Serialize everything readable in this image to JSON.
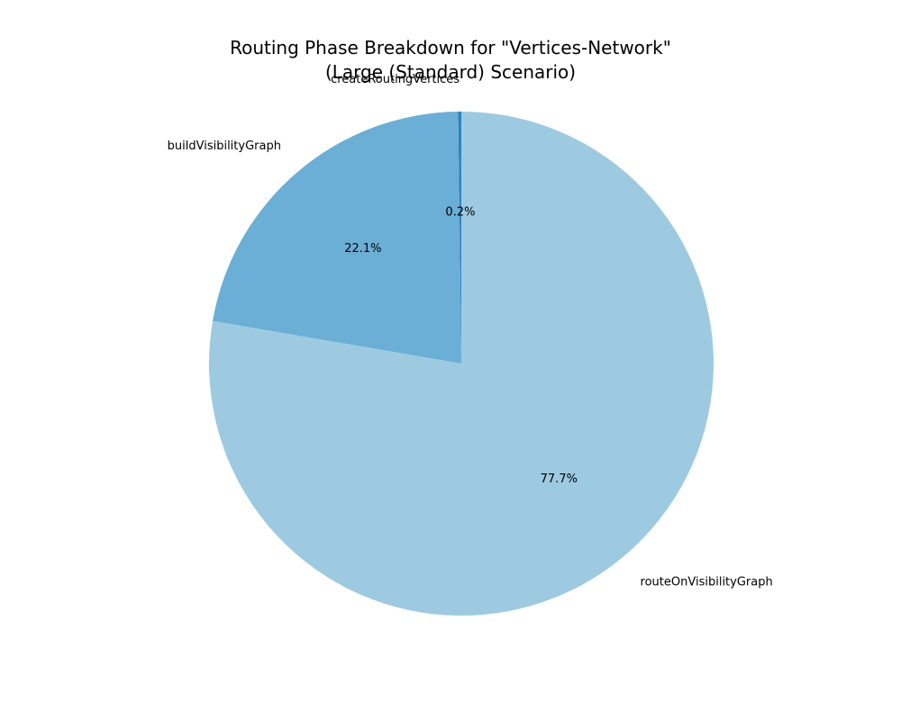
{
  "chart_data": {
    "type": "pie",
    "title_lines": [
      "Routing Phase Breakdown for \"Vertices-Network\"",
      "(Large (Standard) Scenario)"
    ],
    "slices": [
      {
        "label": "createRoutingVertices",
        "value": 0.2,
        "pct_label": "0.2%",
        "color": "#3182bd"
      },
      {
        "label": "buildVisibilityGraph",
        "value": 22.1,
        "pct_label": "22.1%",
        "color": "#6baed6"
      },
      {
        "label": "routeOnVisibilityGraph",
        "value": 77.7,
        "pct_label": "77.7%",
        "color": "#9ecae1"
      }
    ],
    "start_angle_deg": 90,
    "direction": "counterclockwise"
  }
}
